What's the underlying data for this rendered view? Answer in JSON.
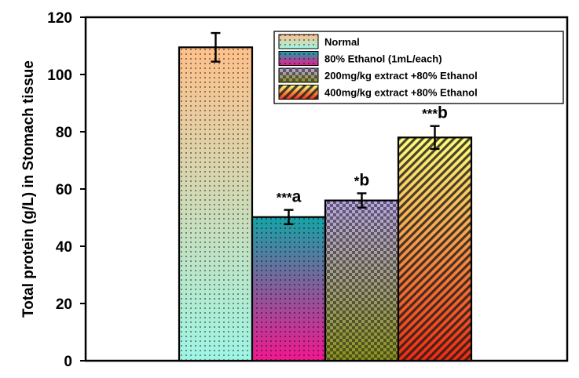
{
  "chart_data": {
    "type": "bar",
    "title": "",
    "xlabel": "",
    "ylabel": "Total protein (g/L) in Stomach tissue",
    "ylim": [
      0,
      120
    ],
    "yticks": [
      0,
      20,
      40,
      60,
      80,
      100,
      120
    ],
    "grid": false,
    "legend_position": "top-right",
    "categories": [
      "Normal",
      "80% Ethanol (1mL/each)",
      "200mg/kg extract +80% Ethanol",
      "400mg/kg extract +80% Ethanol"
    ],
    "values": [
      109.5,
      50.2,
      56.0,
      78.0
    ],
    "errors": [
      5.0,
      2.5,
      2.5,
      4.0
    ],
    "annotations": [
      {
        "stars": "",
        "letter": ""
      },
      {
        "stars": "***",
        "letter": "a"
      },
      {
        "stars": "*",
        "letter": "b"
      },
      {
        "stars": "***",
        "letter": "b"
      }
    ],
    "fills": [
      {
        "top": "#ffc08a",
        "bottom": "#9ef5e4",
        "pattern": "dots"
      },
      {
        "top": "#16a3a6",
        "bottom": "#f2178f",
        "pattern": "dots"
      },
      {
        "top": "#b9a5e6",
        "bottom": "#8c941a",
        "pattern": "checks"
      },
      {
        "top": "#ffff7a",
        "bottom": "#ee2a12",
        "pattern": "diagonal"
      }
    ]
  }
}
